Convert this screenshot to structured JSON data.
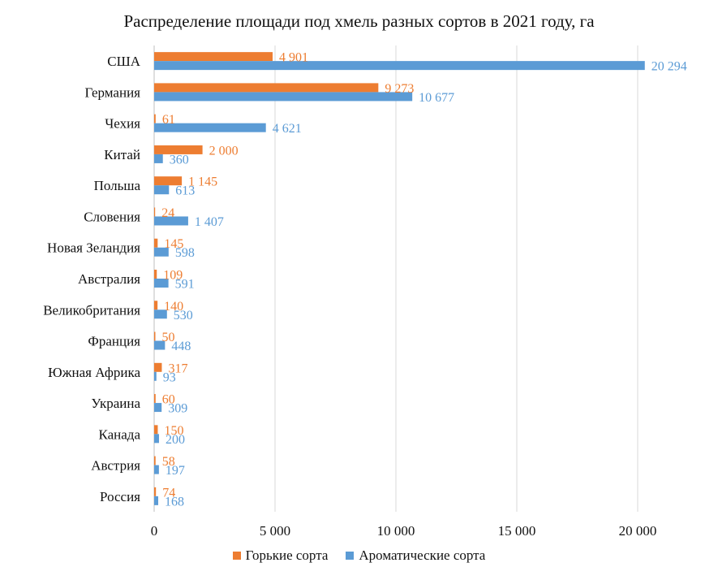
{
  "chart_data": {
    "type": "bar",
    "orientation": "horizontal",
    "title": "Распределение площади под хмель разных сортов в 2021 году, га",
    "categories": [
      "США",
      "Германия",
      "Чехия",
      "Китай",
      "Польша",
      "Словения",
      "Новая Зеландия",
      "Австралия",
      "Великобритания",
      "Франция",
      "Южная Африка",
      "Украина",
      "Канада",
      "Австрия",
      "Россия"
    ],
    "series": [
      {
        "name": "Горькие сорта",
        "color": "#ED7D31",
        "values": [
          4901,
          9273,
          61,
          2000,
          1145,
          24,
          145,
          109,
          140,
          50,
          317,
          60,
          150,
          58,
          74
        ],
        "labels": [
          "4 901",
          "9 273",
          "61",
          "2 000",
          "1 145",
          "24",
          "145",
          "109",
          "140",
          "50",
          "317",
          "60",
          "150",
          "58",
          "74"
        ]
      },
      {
        "name": "Ароматические сорта",
        "color": "#5B9BD5",
        "values": [
          20294,
          10677,
          4621,
          360,
          613,
          1407,
          598,
          591,
          530,
          448,
          93,
          309,
          200,
          197,
          168
        ],
        "labels": [
          "20 294",
          "10 677",
          "4 621",
          "360",
          "613",
          "1 407",
          "598",
          "591",
          "530",
          "448",
          "93",
          "309",
          "200",
          "197",
          "168"
        ]
      }
    ],
    "xlim": [
      0,
      22500
    ],
    "ticks": [
      0,
      5000,
      10000,
      15000,
      20000
    ],
    "tick_labels": [
      "0",
      "5 000",
      "10 000",
      "15 000",
      "20 000"
    ],
    "grid": true,
    "legend_position": "bottom",
    "gridline_color": "#d9d9d9"
  }
}
